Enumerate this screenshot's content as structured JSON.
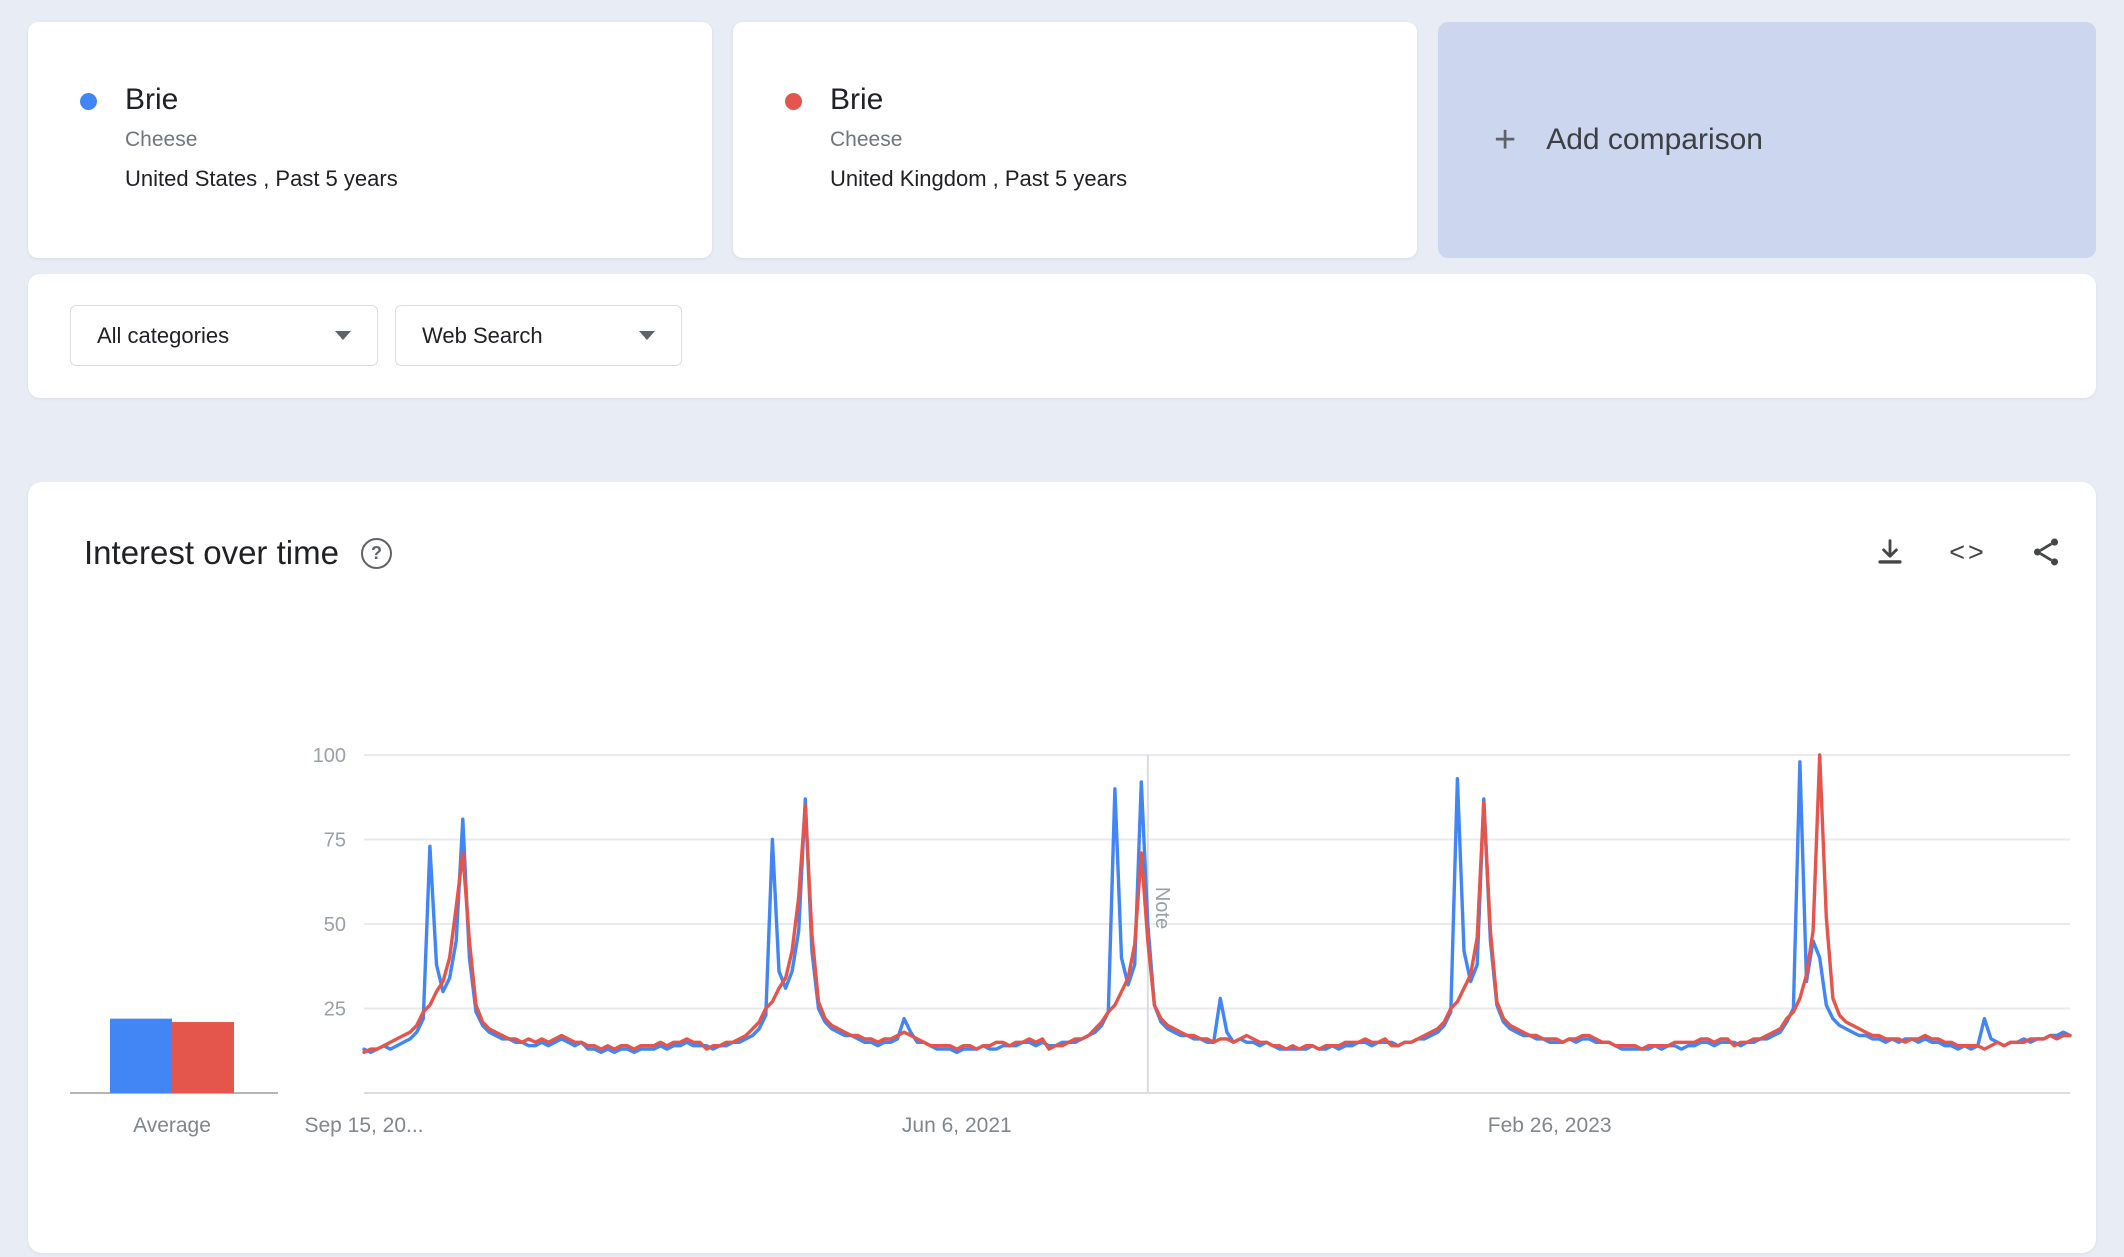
{
  "comparison_cards": [
    {
      "term": "Brie",
      "subtitle": "Cheese",
      "scope": "United States , Past 5 years",
      "color": "#4285f4"
    },
    {
      "term": "Brie",
      "subtitle": "Cheese",
      "scope": "United Kingdom , Past 5 years",
      "color": "#e4554c"
    }
  ],
  "add_comparison": {
    "label": "Add comparison"
  },
  "filters": {
    "category": "All categories",
    "search_type": "Web Search"
  },
  "chart_panel": {
    "title": "Interest over time"
  },
  "icons": {
    "help": "?",
    "embed": "<>",
    "plus": "+"
  },
  "colors": {
    "series_blue": "#4285f4",
    "series_red": "#e4554c",
    "add_card_bg": "#ccd6ee"
  },
  "chart_data": {
    "type": "line",
    "title": "Interest over time",
    "ylim": [
      0,
      100
    ],
    "y_ticks": [
      25,
      50,
      75,
      100
    ],
    "grid": true,
    "x_tick_labels": [
      {
        "index": 0,
        "label": "Sep 15, 20..."
      },
      {
        "index": 90,
        "label": "Jun 6, 2021"
      },
      {
        "index": 180,
        "label": "Feb 26, 2023"
      }
    ],
    "note_marker": {
      "index": 119,
      "label": "Note"
    },
    "average_label": "Average",
    "series": [
      {
        "name": "Brie (United States)",
        "color": "#4285f4",
        "average": 22,
        "values": [
          13,
          12,
          13,
          14,
          13,
          14,
          15,
          16,
          18,
          22,
          73,
          38,
          30,
          34,
          45,
          81,
          40,
          24,
          20,
          18,
          17,
          16,
          16,
          15,
          15,
          14,
          14,
          15,
          14,
          15,
          16,
          15,
          14,
          15,
          13,
          13,
          12,
          13,
          12,
          13,
          13,
          12,
          13,
          13,
          13,
          14,
          13,
          14,
          14,
          15,
          14,
          14,
          14,
          13,
          14,
          14,
          15,
          15,
          16,
          17,
          19,
          23,
          75,
          36,
          31,
          36,
          48,
          87,
          42,
          25,
          21,
          19,
          18,
          17,
          17,
          16,
          15,
          15,
          14,
          15,
          15,
          16,
          22,
          18,
          15,
          15,
          14,
          13,
          13,
          13,
          12,
          13,
          13,
          13,
          14,
          13,
          13,
          14,
          14,
          14,
          15,
          15,
          14,
          15,
          14,
          14,
          15,
          15,
          15,
          16,
          17,
          18,
          20,
          24,
          90,
          40,
          32,
          38,
          92,
          50,
          26,
          21,
          19,
          18,
          17,
          17,
          16,
          16,
          15,
          15,
          28,
          18,
          15,
          16,
          15,
          15,
          14,
          15,
          14,
          13,
          13,
          13,
          13,
          13,
          14,
          13,
          13,
          14,
          13,
          14,
          14,
          15,
          15,
          14,
          15,
          15,
          15,
          14,
          15,
          15,
          16,
          16,
          17,
          18,
          20,
          24,
          93,
          42,
          33,
          38,
          87,
          45,
          26,
          21,
          19,
          18,
          17,
          17,
          16,
          16,
          15,
          15,
          15,
          16,
          15,
          16,
          16,
          15,
          15,
          15,
          14,
          13,
          13,
          13,
          13,
          13,
          14,
          13,
          14,
          14,
          13,
          14,
          14,
          15,
          15,
          14,
          15,
          15,
          15,
          14,
          15,
          15,
          16,
          16,
          17,
          18,
          21,
          25,
          98,
          33,
          45,
          40,
          26,
          22,
          20,
          19,
          18,
          17,
          17,
          16,
          16,
          15,
          16,
          15,
          16,
          16,
          15,
          16,
          15,
          15,
          14,
          14,
          13,
          14,
          13,
          14,
          22,
          16,
          15,
          14,
          15,
          15,
          16,
          15,
          16,
          16,
          17,
          17,
          18,
          17
        ]
      },
      {
        "name": "Brie (United Kingdom)",
        "color": "#e4554c",
        "average": 21,
        "values": [
          12,
          13,
          13,
          14,
          15,
          16,
          17,
          18,
          20,
          24,
          26,
          30,
          33,
          40,
          55,
          71,
          45,
          26,
          21,
          19,
          18,
          17,
          16,
          16,
          15,
          16,
          15,
          16,
          15,
          16,
          17,
          16,
          15,
          15,
          14,
          14,
          13,
          14,
          13,
          14,
          14,
          13,
          14,
          14,
          14,
          15,
          14,
          15,
          15,
          16,
          15,
          15,
          13,
          14,
          14,
          15,
          15,
          16,
          17,
          19,
          21,
          25,
          27,
          31,
          34,
          42,
          58,
          85,
          47,
          27,
          22,
          20,
          19,
          18,
          17,
          17,
          16,
          16,
          15,
          16,
          16,
          17,
          18,
          17,
          16,
          15,
          14,
          14,
          14,
          14,
          13,
          14,
          14,
          13,
          14,
          14,
          15,
          15,
          14,
          15,
          15,
          16,
          15,
          16,
          13,
          14,
          14,
          15,
          16,
          16,
          17,
          19,
          21,
          24,
          26,
          30,
          34,
          44,
          71,
          45,
          26,
          22,
          20,
          19,
          18,
          17,
          17,
          16,
          16,
          15,
          16,
          16,
          15,
          16,
          17,
          16,
          15,
          15,
          14,
          14,
          13,
          14,
          13,
          14,
          14,
          13,
          14,
          14,
          14,
          15,
          15,
          15,
          16,
          15,
          15,
          16,
          14,
          14,
          15,
          15,
          16,
          17,
          18,
          19,
          21,
          25,
          27,
          31,
          35,
          46,
          86,
          48,
          27,
          22,
          20,
          19,
          18,
          17,
          17,
          16,
          16,
          16,
          15,
          16,
          16,
          17,
          17,
          16,
          15,
          15,
          14,
          14,
          14,
          14,
          13,
          14,
          14,
          14,
          14,
          15,
          15,
          15,
          15,
          16,
          16,
          15,
          16,
          16,
          14,
          15,
          15,
          16,
          16,
          17,
          18,
          19,
          22,
          24,
          28,
          35,
          48,
          100,
          52,
          28,
          23,
          21,
          20,
          19,
          18,
          17,
          17,
          16,
          16,
          16,
          15,
          16,
          16,
          17,
          16,
          16,
          15,
          15,
          14,
          14,
          14,
          14,
          13,
          14,
          15,
          14,
          15,
          15,
          15,
          16,
          16,
          16,
          17,
          16,
          17,
          17
        ]
      }
    ]
  }
}
